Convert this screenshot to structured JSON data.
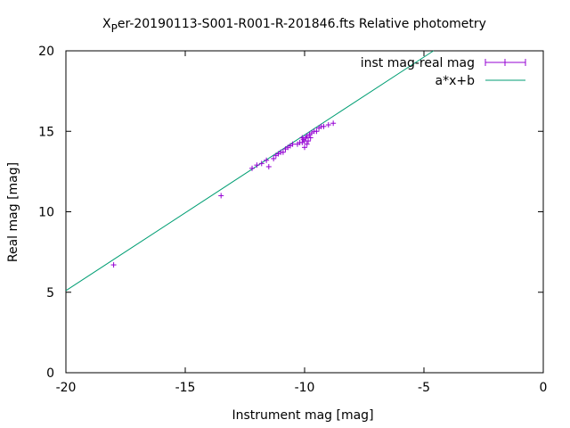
{
  "chart_data": {
    "type": "scatter",
    "title_main": "X",
    "title_sub": "P",
    "title_rest": "er-20190113-S001-R001-R-201846.fts Relative photometry",
    "xlabel": "Instrument mag [mag]",
    "ylabel": "Real mag [mag]",
    "xlim": [
      -20,
      0
    ],
    "ylim": [
      0,
      20
    ],
    "xticks": [
      -20,
      -15,
      -10,
      -5,
      0
    ],
    "xtick_labels": [
      "-20",
      "-15",
      "-10",
      "-5",
      "0"
    ],
    "yticks": [
      0,
      5,
      10,
      15,
      20
    ],
    "ytick_labels": [
      "0",
      "5",
      "10",
      "15",
      "20"
    ],
    "grid": false,
    "legend_position": "top-right",
    "colors": {
      "points": "#9400d3",
      "fit": "#009e73"
    },
    "series": [
      {
        "name": "inst mag-real mag",
        "kind": "points",
        "points": [
          [
            -18.0,
            6.7
          ],
          [
            -13.5,
            11.0
          ],
          [
            -12.2,
            12.7
          ],
          [
            -12.0,
            12.9
          ],
          [
            -11.8,
            13.0
          ],
          [
            -11.6,
            13.2
          ],
          [
            -11.5,
            12.8
          ],
          [
            -11.3,
            13.3
          ],
          [
            -11.2,
            13.5
          ],
          [
            -11.1,
            13.6
          ],
          [
            -11.0,
            13.7
          ],
          [
            -10.9,
            13.7
          ],
          [
            -10.8,
            13.9
          ],
          [
            -10.7,
            14.0
          ],
          [
            -10.6,
            14.1
          ],
          [
            -10.5,
            14.2
          ],
          [
            -10.3,
            14.2
          ],
          [
            -10.2,
            14.3
          ],
          [
            -10.1,
            14.3
          ],
          [
            -10.05,
            14.5
          ],
          [
            -10.0,
            14.4
          ],
          [
            -9.95,
            14.6
          ],
          [
            -9.9,
            14.7
          ],
          [
            -9.8,
            14.8
          ],
          [
            -9.75,
            14.6
          ],
          [
            -9.7,
            14.9
          ],
          [
            -9.6,
            15.0
          ],
          [
            -9.5,
            15.0
          ],
          [
            -9.4,
            15.2
          ],
          [
            -9.3,
            15.3
          ],
          [
            -9.2,
            15.3
          ],
          [
            -9.0,
            15.4
          ],
          [
            -8.8,
            15.5
          ],
          [
            -10.0,
            14.0
          ],
          [
            -9.9,
            14.2
          ],
          [
            -10.1,
            14.6
          ],
          [
            -9.85,
            14.4
          ]
        ]
      },
      {
        "name": "a*x+b",
        "kind": "line",
        "x": [
          -20,
          -4.6
        ],
        "y": [
          5.1,
          20.0
        ]
      }
    ]
  }
}
